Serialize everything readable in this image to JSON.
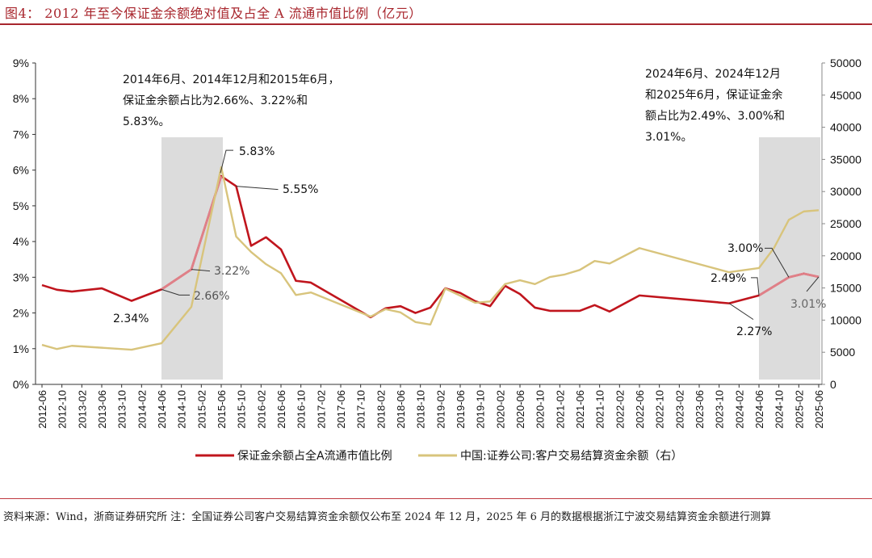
{
  "title": "图4：  2012 年至今保证金余额绝对值及占全 A 流通市值比例（亿元）",
  "source_note": "资料来源：Wind，浙商证券研究所  注：全国证券公司客户交易结算资金余额仅公布至 2024 年 12 月，2025 年 6 月的数据根据浙江宁波交易结算资金余额进行测算",
  "annotations": {
    "left_box": "2014年6月、2014年12月和2015年6月，保证金余额占比为2.66%、3.22%和5.83%。",
    "right_box": "2024年6月、2024年12月和2025年6月，保证证金余额占比为2.49%、3.00%和3.01%。"
  },
  "chart_data": {
    "type": "line",
    "title": "",
    "xlabel": "",
    "ylabel_left": "",
    "ylabel_right": "",
    "x_range": [
      "2012-06",
      "2025-06"
    ],
    "x_ticks": [
      "2012-06",
      "2012-10",
      "2013-02",
      "2013-06",
      "2013-10",
      "2014-02",
      "2014-06",
      "2014-10",
      "2015-02",
      "2015-06",
      "2015-10",
      "2016-02",
      "2016-06",
      "2016-10",
      "2017-02",
      "2017-06",
      "2017-10",
      "2018-02",
      "2018-06",
      "2018-10",
      "2019-02",
      "2019-06",
      "2019-10",
      "2020-02",
      "2020-06",
      "2020-10",
      "2021-02",
      "2021-06",
      "2021-10",
      "2022-02",
      "2022-06",
      "2022-10",
      "2023-02",
      "2023-06",
      "2023-10",
      "2024-02",
      "2024-06",
      "2024-10",
      "2025-02",
      "2025-06"
    ],
    "y_left": {
      "range": [
        0,
        9
      ],
      "ticks": [
        "0%",
        "1%",
        "2%",
        "3%",
        "4%",
        "5%",
        "6%",
        "7%",
        "8%",
        "9%"
      ]
    },
    "y_right": {
      "range": [
        0,
        50000
      ],
      "ticks": [
        "0",
        "5000",
        "10000",
        "15000",
        "20000",
        "25000",
        "30000",
        "35000",
        "40000",
        "45000",
        "50000"
      ]
    },
    "grid": false,
    "legend_position": "bottom",
    "shaded_periods": [
      [
        "2014-06",
        "2015-06"
      ],
      [
        "2024-06",
        "2025-06"
      ]
    ],
    "colors": {
      "ratio": "#c0151d",
      "ratio_highlight": "#e08088",
      "balance": "#d8c47c",
      "shade": "#dcdcdc"
    },
    "series": [
      {
        "name": "保证金余额占全A流通市值比例",
        "axis": "left",
        "unit": "%",
        "x": [
          "2012-06",
          "2012-09",
          "2012-12",
          "2013-06",
          "2013-12",
          "2014-06",
          "2014-12",
          "2015-06",
          "2015-09",
          "2015-12",
          "2016-03",
          "2016-06",
          "2016-09",
          "2016-12",
          "2017-12",
          "2018-03",
          "2018-06",
          "2018-09",
          "2018-12",
          "2019-03",
          "2019-06",
          "2019-09",
          "2019-12",
          "2020-03",
          "2020-06",
          "2020-09",
          "2020-12",
          "2021-06",
          "2021-09",
          "2021-12",
          "2022-06",
          "2023-12",
          "2024-06",
          "2024-12",
          "2025-03",
          "2025-06"
        ],
        "values": [
          2.78,
          2.65,
          2.6,
          2.69,
          2.34,
          2.66,
          3.22,
          5.83,
          5.55,
          3.88,
          4.12,
          3.78,
          2.9,
          2.85,
          1.88,
          2.13,
          2.19,
          2.0,
          2.15,
          2.69,
          2.56,
          2.33,
          2.19,
          2.76,
          2.53,
          2.15,
          2.06,
          2.06,
          2.22,
          2.04,
          2.49,
          2.27,
          2.49,
          3.0,
          3.1,
          3.01
        ]
      },
      {
        "name": "中国:证券公司:客户交易结算资金余额（右）",
        "axis": "right",
        "x": [
          "2012-06",
          "2012-09",
          "2012-12",
          "2013-12",
          "2014-06",
          "2014-12",
          "2015-06",
          "2015-09",
          "2015-12",
          "2016-03",
          "2016-06",
          "2016-09",
          "2016-12",
          "2017-12",
          "2018-03",
          "2018-06",
          "2018-09",
          "2018-12",
          "2019-03",
          "2019-09",
          "2019-12",
          "2020-03",
          "2020-06",
          "2020-09",
          "2020-12",
          "2021-03",
          "2021-06",
          "2021-09",
          "2021-12",
          "2022-06",
          "2023-12",
          "2024-06",
          "2024-09",
          "2024-12",
          "2025-03",
          "2025-06"
        ],
        "values": [
          6150,
          5500,
          6000,
          5400,
          6400,
          12060,
          33800,
          23000,
          20600,
          18700,
          17300,
          13900,
          14300,
          10550,
          11700,
          11200,
          9700,
          9300,
          14900,
          12700,
          12900,
          15600,
          16200,
          15600,
          16700,
          17100,
          17800,
          19200,
          18800,
          21200,
          17450,
          18100,
          21200,
          25600,
          26900,
          27100
        ]
      }
    ],
    "data_labels": [
      {
        "text": "2.34%",
        "x": "2013-12"
      },
      {
        "text": "2.66%",
        "x": "2014-06"
      },
      {
        "text": "3.22%",
        "x": "2014-12"
      },
      {
        "text": "5.83%",
        "x": "2015-06"
      },
      {
        "text": "5.55%",
        "x": "2015-09"
      },
      {
        "text": "2.27%",
        "x": "2023-12"
      },
      {
        "text": "2.49%",
        "x": "2024-06"
      },
      {
        "text": "3.00%",
        "x": "2024-12"
      },
      {
        "text": "3.01%",
        "x": "2025-06"
      }
    ]
  }
}
